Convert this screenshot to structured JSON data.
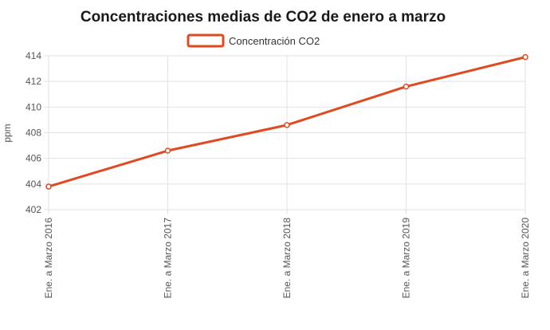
{
  "chart_data": {
    "type": "line",
    "title": "Concentraciones medias de CO2 de enero a marzo",
    "xlabel": "",
    "ylabel": "ppm",
    "categories": [
      "Ene. a Marzo 2016",
      "Ene. a Marzo 2017",
      "Ene. a Marzo 2018",
      "Ene. a Marzo 2019",
      "Ene. a Marzo 2020"
    ],
    "series": [
      {
        "name": "Concentración CO2",
        "values": [
          403.8,
          406.6,
          408.6,
          411.6,
          413.9
        ],
        "color": "#e04a22"
      }
    ],
    "ylim": [
      402,
      414
    ],
    "yticks": [
      402,
      404,
      406,
      408,
      410,
      412,
      414
    ],
    "grid": true,
    "legend": "top-center"
  }
}
